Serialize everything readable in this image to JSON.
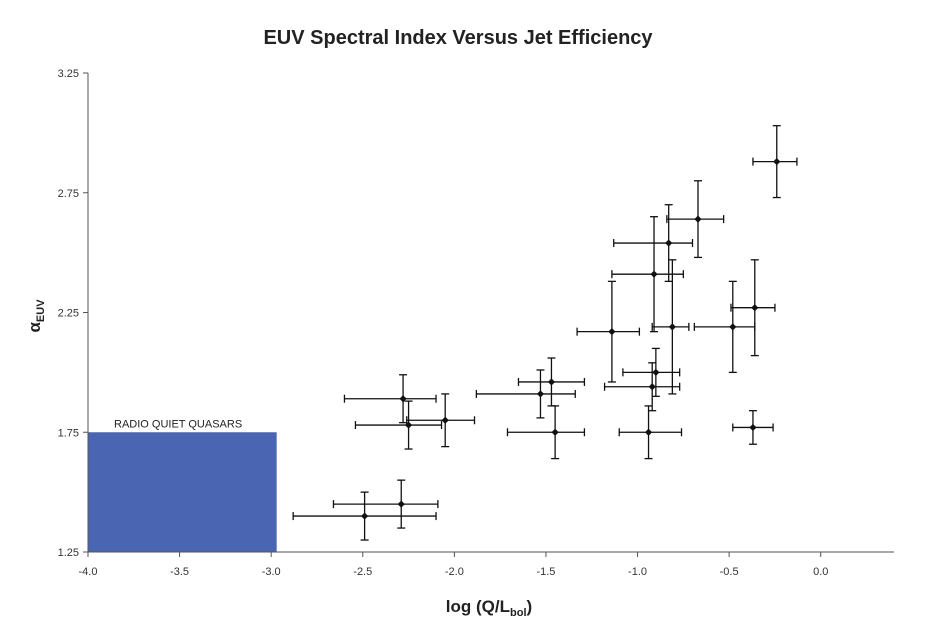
{
  "chart_data": {
    "type": "scatter",
    "title": "EUV Spectral Index Versus Jet Efficiency",
    "xlabel": {
      "main": "log (Q/L",
      "sub": "bol",
      "end": ")"
    },
    "ylabel": {
      "main": "α",
      "sub": "EUV"
    },
    "xlim": [
      -4.0,
      0.4
    ],
    "ylim": [
      1.25,
      3.25
    ],
    "x_ticks": [
      -4.0,
      -3.5,
      -3.0,
      -2.5,
      -2.0,
      -1.5,
      -1.0,
      -0.5,
      0.0
    ],
    "x_tick_labels": [
      "-4.0",
      "-3.5",
      "-3.0",
      "-2.5",
      "-2.0",
      "-1.5",
      "-1.0",
      "-0.5",
      "0.0"
    ],
    "y_ticks": [
      1.25,
      1.75,
      2.25,
      2.75,
      3.25
    ],
    "y_tick_labels": [
      "1.25",
      "1.75",
      "2.25",
      "2.75",
      "3.25"
    ],
    "grid": false,
    "region": {
      "label": "RADIO QUIET QUASARS",
      "x": [
        -4.0,
        -2.97
      ],
      "y": [
        1.25,
        1.75
      ],
      "color": "#4a66b2"
    },
    "points": [
      {
        "x": -2.49,
        "y": 1.4,
        "xerr": [
          0.39,
          0.39
        ],
        "yerr": [
          0.1,
          0.1
        ]
      },
      {
        "x": -2.29,
        "y": 1.45,
        "xerr": [
          0.37,
          0.2
        ],
        "yerr": [
          0.1,
          0.1
        ]
      },
      {
        "x": -2.28,
        "y": 1.89,
        "xerr": [
          0.32,
          0.18
        ],
        "yerr": [
          0.1,
          0.1
        ]
      },
      {
        "x": -2.25,
        "y": 1.78,
        "xerr": [
          0.29,
          0.18
        ],
        "yerr": [
          0.1,
          0.1
        ]
      },
      {
        "x": -2.05,
        "y": 1.8,
        "xerr": [
          0.21,
          0.16
        ],
        "yerr": [
          0.11,
          0.11
        ]
      },
      {
        "x": -1.53,
        "y": 1.91,
        "xerr": [
          0.35,
          0.19
        ],
        "yerr": [
          0.1,
          0.1
        ]
      },
      {
        "x": -1.47,
        "y": 1.96,
        "xerr": [
          0.18,
          0.18
        ],
        "yerr": [
          0.1,
          0.1
        ]
      },
      {
        "x": -1.45,
        "y": 1.75,
        "xerr": [
          0.26,
          0.16
        ],
        "yerr": [
          0.11,
          0.11
        ]
      },
      {
        "x": -1.14,
        "y": 2.17,
        "xerr": [
          0.19,
          0.15
        ],
        "yerr": [
          0.21,
          0.21
        ]
      },
      {
        "x": -0.94,
        "y": 1.75,
        "xerr": [
          0.16,
          0.18
        ],
        "yerr": [
          0.11,
          0.11
        ]
      },
      {
        "x": -0.92,
        "y": 1.94,
        "xerr": [
          0.26,
          0.15
        ],
        "yerr": [
          0.1,
          0.1
        ]
      },
      {
        "x": -0.9,
        "y": 2.0,
        "xerr": [
          0.18,
          0.13
        ],
        "yerr": [
          0.1,
          0.1
        ]
      },
      {
        "x": -0.91,
        "y": 2.41,
        "xerr": [
          0.23,
          0.16
        ],
        "yerr": [
          0.24,
          0.24
        ]
      },
      {
        "x": -0.83,
        "y": 2.54,
        "xerr": [
          0.3,
          0.13
        ],
        "yerr": [
          0.16,
          0.16
        ]
      },
      {
        "x": -0.81,
        "y": 2.19,
        "xerr": [
          0.11,
          0.09
        ],
        "yerr": [
          0.28,
          0.28
        ]
      },
      {
        "x": -0.67,
        "y": 2.64,
        "xerr": [
          0.17,
          0.14
        ],
        "yerr": [
          0.16,
          0.16
        ]
      },
      {
        "x": -0.48,
        "y": 2.19,
        "xerr": [
          0.21,
          0.12
        ],
        "yerr": [
          0.19,
          0.19
        ]
      },
      {
        "x": -0.37,
        "y": 1.77,
        "xerr": [
          0.11,
          0.11
        ],
        "yerr": [
          0.07,
          0.07
        ]
      },
      {
        "x": -0.36,
        "y": 2.27,
        "xerr": [
          0.13,
          0.11
        ],
        "yerr": [
          0.2,
          0.2
        ]
      },
      {
        "x": -0.24,
        "y": 2.88,
        "xerr": [
          0.13,
          0.11
        ],
        "yerr": [
          0.15,
          0.15
        ]
      }
    ]
  }
}
